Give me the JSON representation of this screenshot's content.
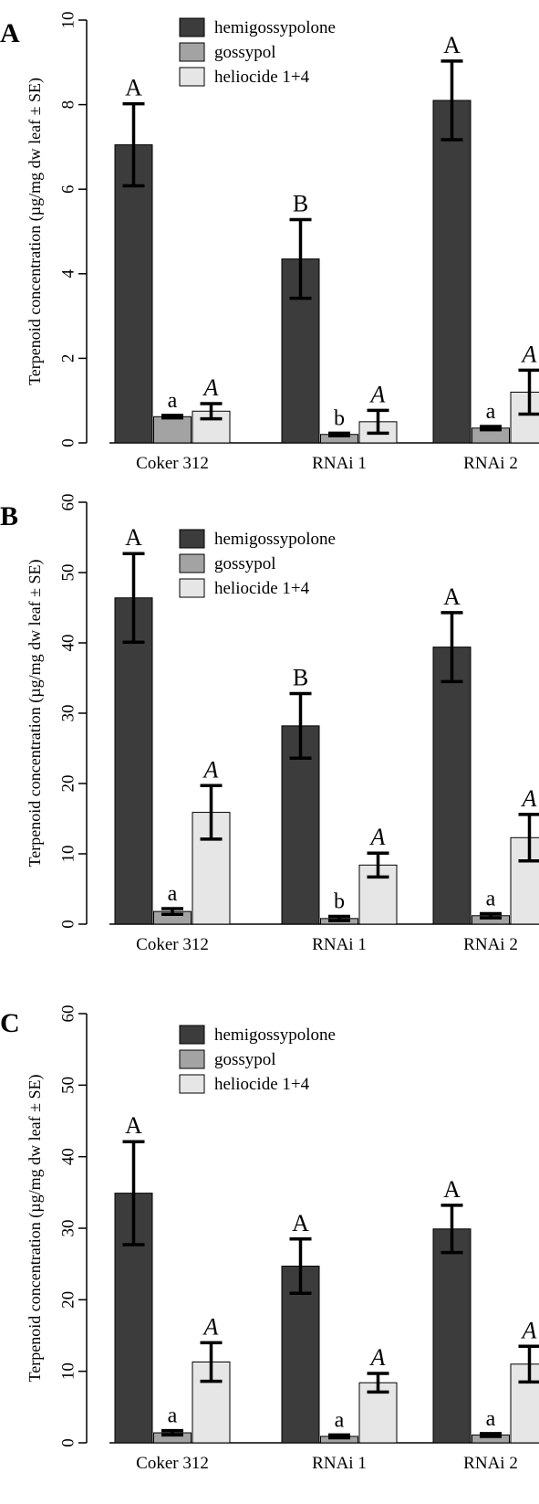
{
  "chart_data": [
    {
      "panel": "A",
      "type": "bar",
      "ylabel": "Terpenoid concentration (µg/mg dw leaf ± SE)",
      "ylim": [
        0,
        10
      ],
      "yticks": [
        0,
        2,
        4,
        6,
        8,
        10
      ],
      "categories": [
        "Coker 312",
        "RNAi 1",
        "RNAi 2"
      ],
      "legend": {
        "position": "top-right"
      },
      "series": [
        {
          "name": "hemigossypolone",
          "color": "#3c3c3c",
          "values": [
            7.05,
            4.35,
            8.1
          ],
          "errors": [
            0.97,
            0.93,
            0.93
          ],
          "labels": [
            "A",
            "B",
            "A"
          ],
          "label_style": "upper"
        },
        {
          "name": "gossypol",
          "color": "#a3a3a3",
          "values": [
            0.62,
            0.2,
            0.35
          ],
          "errors": [
            0.03,
            0.03,
            0.04
          ],
          "labels": [
            "a",
            "b",
            "a"
          ],
          "label_style": "lower"
        },
        {
          "name": "heliocide 1+4",
          "color": "#e6e6e6",
          "values": [
            0.75,
            0.5,
            1.2
          ],
          "errors": [
            0.18,
            0.27,
            0.52
          ],
          "labels": [
            "A",
            "A",
            "A"
          ],
          "label_style": "italic"
        }
      ]
    },
    {
      "panel": "B",
      "type": "bar",
      "ylabel": "Terpenoid concentration (µg/mg dw leaf ± SE)",
      "ylim": [
        0,
        60
      ],
      "yticks": [
        0,
        10,
        20,
        30,
        40,
        50,
        60
      ],
      "categories": [
        "Coker 312",
        "RNAi 1",
        "RNAi 2"
      ],
      "legend": {
        "position": "top-right"
      },
      "series": [
        {
          "name": "hemigossypolone",
          "color": "#3c3c3c",
          "values": [
            46.4,
            28.2,
            39.4
          ],
          "errors": [
            6.3,
            4.6,
            4.9
          ],
          "labels": [
            "A",
            "B",
            "A"
          ],
          "label_style": "upper"
        },
        {
          "name": "gossypol",
          "color": "#a3a3a3",
          "values": [
            1.8,
            0.8,
            1.2
          ],
          "errors": [
            0.4,
            0.3,
            0.3
          ],
          "labels": [
            "a",
            "b",
            "a"
          ],
          "label_style": "lower"
        },
        {
          "name": "heliocide 1+4",
          "color": "#e6e6e6",
          "values": [
            15.9,
            8.4,
            12.3
          ],
          "errors": [
            3.8,
            1.7,
            3.3
          ],
          "labels": [
            "A",
            "A",
            "A"
          ],
          "label_style": "italic"
        }
      ]
    },
    {
      "panel": "C",
      "type": "bar",
      "ylabel": "Terpenoid concentration (µg/mg dw leaf ± SE)",
      "ylim": [
        0,
        60
      ],
      "yticks": [
        0,
        10,
        20,
        30,
        40,
        50,
        60
      ],
      "categories": [
        "Coker 312",
        "RNAi 1",
        "RNAi 2"
      ],
      "legend": {
        "position": "top-right"
      },
      "series": [
        {
          "name": "hemigossypolone",
          "color": "#3c3c3c",
          "values": [
            34.9,
            24.7,
            29.9
          ],
          "errors": [
            7.2,
            3.8,
            3.3
          ],
          "labels": [
            "A",
            "A",
            "A"
          ],
          "label_style": "upper"
        },
        {
          "name": "gossypol",
          "color": "#a3a3a3",
          "values": [
            1.4,
            0.9,
            1.1
          ],
          "errors": [
            0.3,
            0.2,
            0.2
          ],
          "labels": [
            "a",
            "a",
            "a"
          ],
          "label_style": "lower"
        },
        {
          "name": "heliocide 1+4",
          "color": "#e6e6e6",
          "values": [
            11.3,
            8.4,
            11.0
          ],
          "errors": [
            2.7,
            1.3,
            2.5
          ],
          "labels": [
            "A",
            "A",
            "A"
          ],
          "label_style": "italic"
        }
      ]
    }
  ]
}
